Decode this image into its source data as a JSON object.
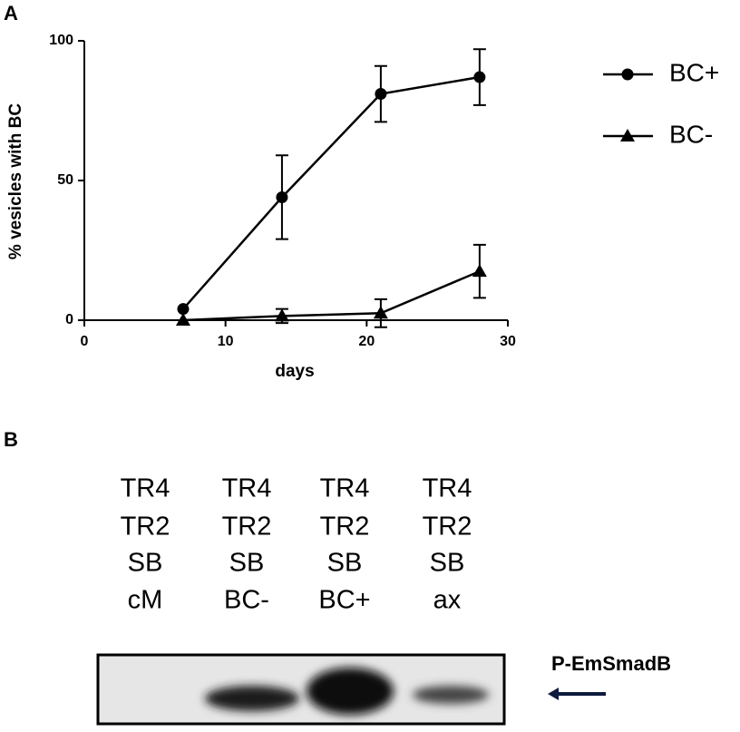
{
  "panel_labels": [
    "A",
    "B"
  ],
  "chart_data": {
    "type": "line",
    "x_label": "days",
    "y_label": "% vesicles with BC",
    "x": [
      7,
      14,
      21,
      28
    ],
    "series": [
      {
        "name": "BC+",
        "color": "#000000",
        "marker": "circle",
        "values": [
          4,
          44,
          81,
          87
        ],
        "errors": [
          null,
          15,
          10,
          10
        ]
      },
      {
        "name": "BC-",
        "color": "#000000",
        "marker": "triangle",
        "values": [
          0,
          1.5,
          2.5,
          17.5
        ],
        "errors": [
          null,
          2.5,
          5,
          9.5
        ]
      }
    ],
    "xlim": [
      0,
      30
    ],
    "xticks": [
      0,
      10,
      20,
      30
    ],
    "ylim": [
      0,
      100
    ],
    "yticks": [
      0,
      50,
      100
    ],
    "grid": false,
    "legend": "right"
  },
  "blot": {
    "lanes": [
      [
        "TR4",
        "TR2",
        "SB",
        "cM"
      ],
      [
        "TR4",
        "TR2",
        "SB",
        "BC-"
      ],
      [
        "TR4",
        "TR2",
        "SB",
        "BC+"
      ],
      [
        "TR4",
        "TR2",
        "SB",
        "ax"
      ]
    ],
    "band_label": "P-EmSmadB"
  }
}
